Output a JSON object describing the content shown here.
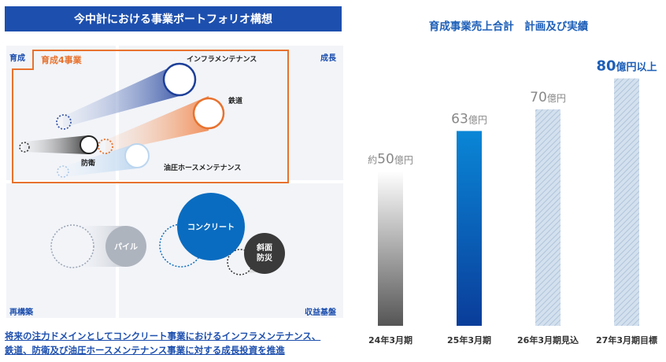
{
  "portfolio": {
    "title": "今中計における事業ポートフォリオ構想",
    "quadrants": {
      "top_left": "育成",
      "top_right": "成長",
      "bottom_left": "再構築",
      "bottom_right": "収益基盤"
    },
    "focus_group_label": "育成4事業",
    "businesses": {
      "infra": "インフラメンテナンス",
      "railway": "鉄道",
      "defense": "防衛",
      "hose": "油圧ホースメンテナンス",
      "concrete": "コンクリート",
      "pile": "パイル",
      "slope_line1": "斜面",
      "slope_line2": "防災"
    },
    "caption_line1": "将来の注力ドメインとしてコンクリート事業におけるインフラメンテナンス、",
    "caption_line2": "鉄道、防衛及び油圧ホースメンテナンス事業に対する成長投資を推進",
    "colors": {
      "title_bg": "#1d4fae",
      "focus_border": "#e8722e",
      "concrete": "#0a6cc0",
      "slope": "#3a3a3a",
      "railway": "#e8722e"
    }
  },
  "chart_data": {
    "type": "bar",
    "title": "育成事業売上合計　計画及び実績",
    "categories": [
      "24年3月期",
      "25年3月期",
      "26年3月期見込",
      "27年3月期目標"
    ],
    "values": [
      50,
      63,
      70,
      80
    ],
    "value_labels": [
      {
        "prefix": "約",
        "number": "50",
        "unit": "億円"
      },
      {
        "prefix": "",
        "number": "63",
        "unit": "億円"
      },
      {
        "prefix": "",
        "number": "70",
        "unit": "億円"
      },
      {
        "prefix": "",
        "number": "80",
        "unit": "億円以上"
      }
    ],
    "bar_styles": [
      "gradient-gray",
      "gradient-blue",
      "hatched",
      "hatched"
    ],
    "colors": {
      "gray_dark": "#555555",
      "blue": "#0a56b8",
      "hatch": "#b9cbe0",
      "highlight_label": "#1d5fb8",
      "label": "#888888"
    },
    "ylim": [
      0,
      85
    ],
    "grid": false,
    "legend": "none"
  }
}
